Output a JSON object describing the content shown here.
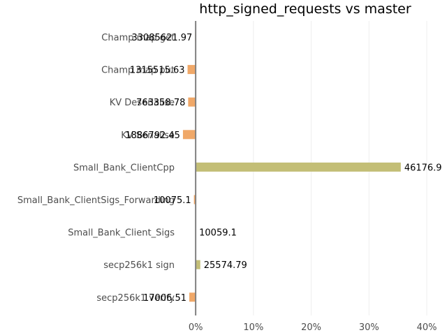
{
  "chart_data": {
    "type": "bar",
    "orientation": "horizontal",
    "title": "http_signed_requests vs master",
    "xlabel": "",
    "ylabel": "",
    "xlim": [
      -0.5,
      43.5
    ],
    "xticks": [
      0,
      10,
      20,
      30,
      40
    ],
    "xtick_labels": [
      "0%",
      "10%",
      "20%",
      "30%",
      "40%"
    ],
    "grid": "vertical",
    "colors": {
      "positive": "#c3be76",
      "negative": "#f0a868",
      "zero_line": "#808080",
      "grid": "#eeeeee"
    },
    "categories": [
      "Champ map get",
      "Champ map put",
      "KV Deserialise",
      "KV Serialise",
      "Small_Bank_ClientCpp",
      "Small_Bank_ClientSigs_Forwarding",
      "Small_Bank_Client_Sigs",
      "secp256k1 sign",
      "secp256k1 verify"
    ],
    "values": [
      -0.1,
      -1.4,
      -1.3,
      -2.2,
      35.5,
      -0.3,
      0.0,
      0.8,
      -1.1
    ],
    "value_labels": [
      "33085621.97",
      "1315515.63",
      "763358.78",
      "1886792.45",
      "46176.9",
      "10075.1",
      "10059.1",
      "25574.79",
      "17006.51"
    ]
  }
}
